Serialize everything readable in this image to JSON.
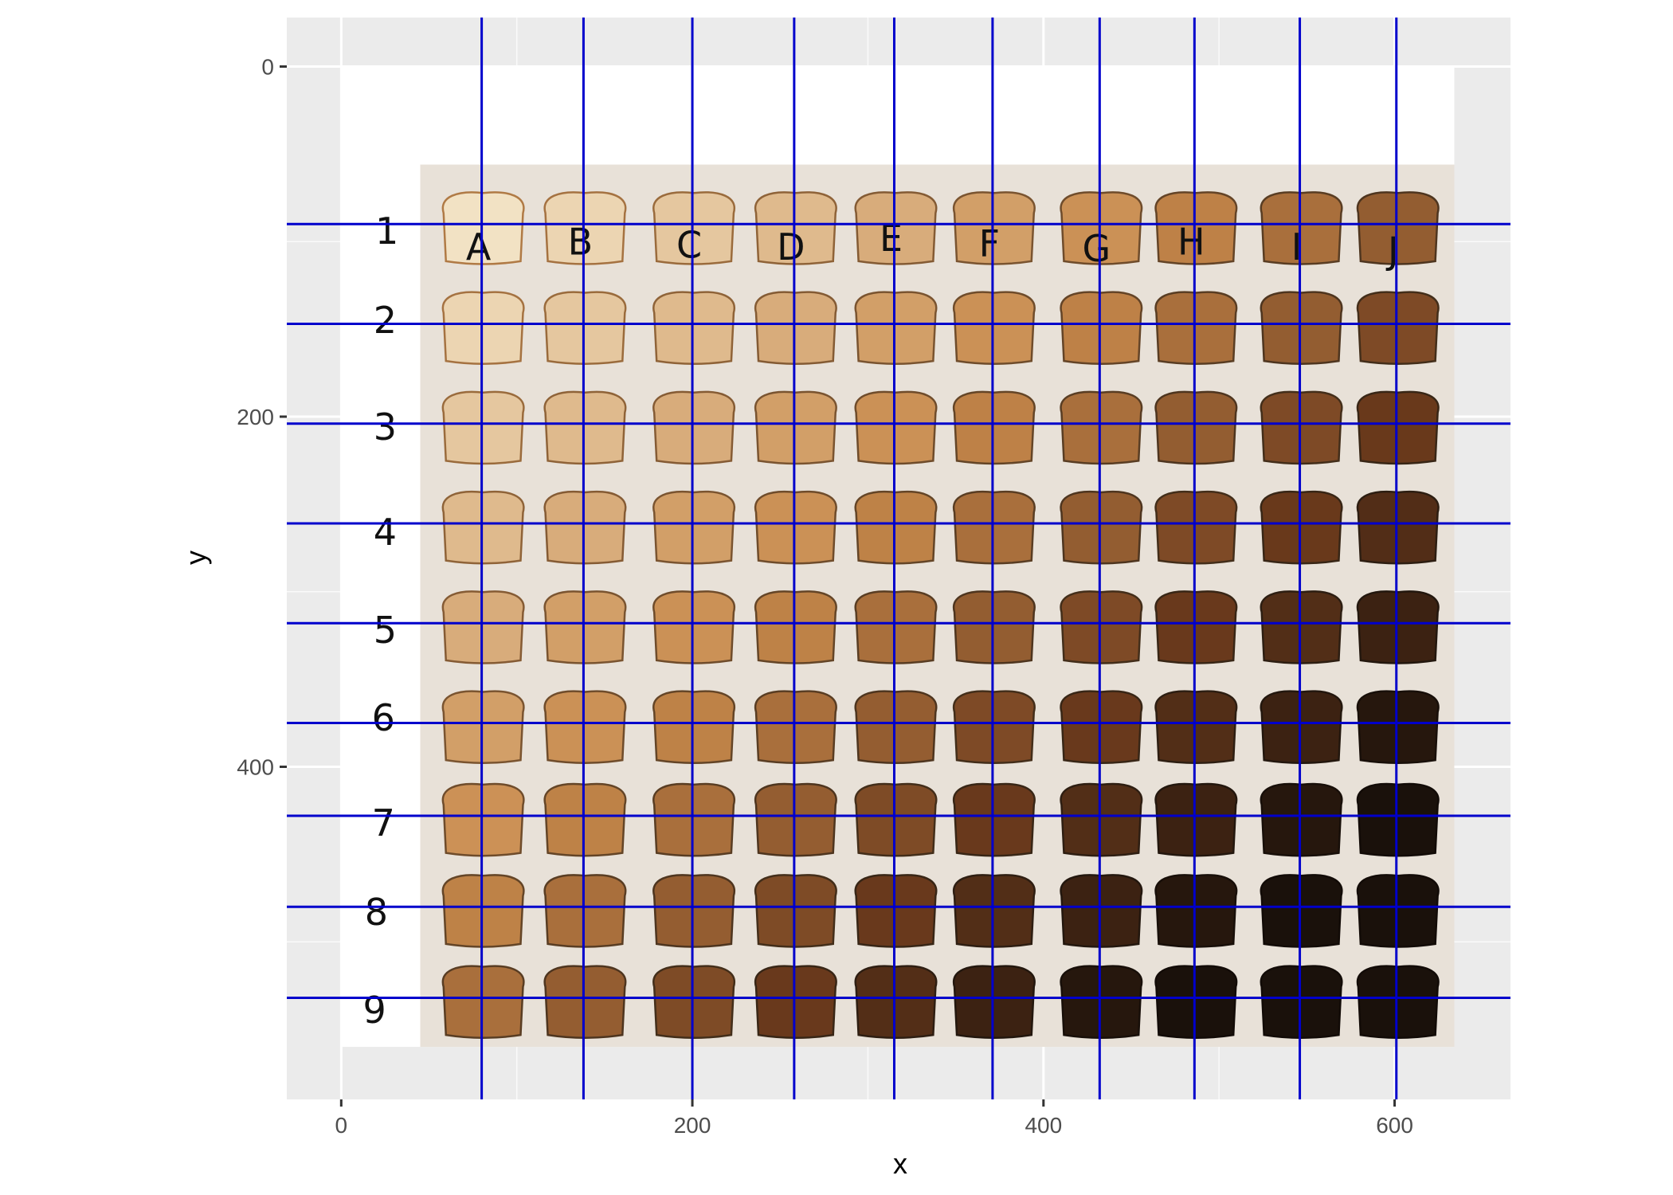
{
  "chart_data": {
    "type": "scatter",
    "xlabel": "x",
    "ylabel": "y",
    "xlim": [
      -31,
      666
    ],
    "ylim": [
      -28,
      590
    ],
    "y_reversed": true,
    "x_ticks": [
      0,
      200,
      400,
      600
    ],
    "y_ticks": [
      0,
      200,
      400
    ],
    "background_image": {
      "column_labels": [
        "A",
        "B",
        "C",
        "D",
        "E",
        "F",
        "G",
        "H",
        "I",
        "J"
      ],
      "row_labels": [
        "1",
        "2",
        "3",
        "4",
        "5",
        "6",
        "7",
        "8",
        "9"
      ]
    },
    "vlines_x": [
      80,
      138,
      200,
      258,
      315,
      371,
      432,
      486,
      546,
      601
    ],
    "hlines_y": [
      90,
      147,
      204,
      261,
      318,
      375,
      428,
      480,
      532
    ],
    "line_color": "#0000cc",
    "panel_color": "#ebebeb",
    "grid": true
  }
}
